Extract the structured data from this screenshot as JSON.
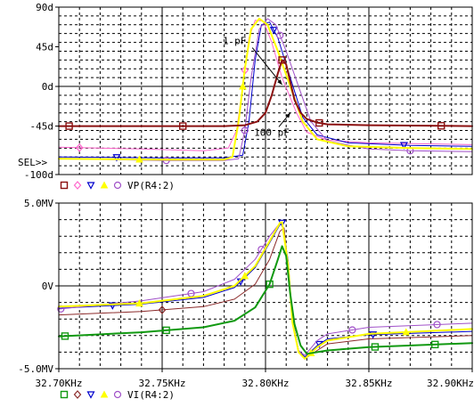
{
  "chart_data": [
    {
      "type": "line",
      "id": "phase",
      "y_ticks": [
        90,
        45,
        0,
        -45,
        -100
      ],
      "y_tick_labels": [
        "90d",
        "45d",
        "0d",
        "-45d",
        "-100d"
      ],
      "ylim": [
        -100,
        90
      ],
      "xlim": [
        32.7,
        32.9
      ],
      "sel_label": "SEL>>",
      "annotations": [
        {
          "text": "1 pF",
          "x": 32.785,
          "y": 48
        },
        {
          "text": "100 pF",
          "x": 32.803,
          "y": -56
        }
      ],
      "legend": {
        "markers": [
          "square",
          "diamond",
          "triangle-down",
          "triangle-up",
          "circle"
        ],
        "label": "VP(R4:2)"
      },
      "series": [
        {
          "marker": "square",
          "color": "#8b1010",
          "width": 2,
          "points": [
            [
              32.7,
              -45
            ],
            [
              32.75,
              -45
            ],
            [
              32.78,
              -45
            ],
            [
              32.79,
              -44
            ],
            [
              32.796,
              -40
            ],
            [
              32.8,
              -30
            ],
            [
              32.803,
              -10
            ],
            [
              32.806,
              15
            ],
            [
              32.808,
              30
            ],
            [
              32.81,
              25
            ],
            [
              32.812,
              5
            ],
            [
              32.814,
              -15
            ],
            [
              32.817,
              -30
            ],
            [
              32.82,
              -37
            ],
            [
              32.825,
              -41
            ],
            [
              32.83,
              -43
            ],
            [
              32.85,
              -44
            ],
            [
              32.9,
              -45
            ]
          ],
          "mark_x": [
            32.705,
            32.76,
            32.808,
            32.826,
            32.885
          ]
        },
        {
          "marker": "diamond",
          "color": "#ff66cc",
          "width": 1,
          "points": [
            [
              32.7,
              -69
            ],
            [
              32.74,
              -71
            ],
            [
              32.77,
              -73
            ],
            [
              32.782,
              -70
            ],
            [
              32.786,
              -50
            ],
            [
              32.789,
              0
            ],
            [
              32.792,
              55
            ],
            [
              32.795,
              75
            ],
            [
              32.799,
              74
            ],
            [
              32.803,
              50
            ],
            [
              32.808,
              10
            ],
            [
              32.815,
              -30
            ],
            [
              32.82,
              -52
            ],
            [
              32.83,
              -61
            ],
            [
              32.85,
              -64
            ],
            [
              32.9,
              -66
            ]
          ],
          "mark_x": [
            32.71,
            32.79
          ]
        },
        {
          "marker": "triangle-down",
          "color": "#0000cc",
          "width": 1,
          "points": [
            [
              32.7,
              -80
            ],
            [
              32.75,
              -81
            ],
            [
              32.78,
              -81
            ],
            [
              32.789,
              -78
            ],
            [
              32.792,
              -40
            ],
            [
              32.795,
              30
            ],
            [
              32.798,
              70
            ],
            [
              32.802,
              73
            ],
            [
              32.806,
              55
            ],
            [
              32.812,
              10
            ],
            [
              32.818,
              -35
            ],
            [
              32.825,
              -55
            ],
            [
              32.84,
              -64
            ],
            [
              32.87,
              -67
            ],
            [
              32.9,
              -68
            ]
          ],
          "mark_x": [
            32.728,
            32.804,
            32.867
          ]
        },
        {
          "marker": "triangle-up",
          "color": "#ffff00",
          "width": 2,
          "points": [
            [
              32.7,
              -82
            ],
            [
              32.75,
              -83
            ],
            [
              32.78,
              -83
            ],
            [
              32.784,
              -80
            ],
            [
              32.787,
              -40
            ],
            [
              32.79,
              20
            ],
            [
              32.793,
              65
            ],
            [
              32.797,
              77
            ],
            [
              32.801,
              70
            ],
            [
              32.806,
              40
            ],
            [
              32.812,
              0
            ],
            [
              32.818,
              -40
            ],
            [
              32.825,
              -60
            ],
            [
              32.84,
              -68
            ],
            [
              32.87,
              -70
            ],
            [
              32.9,
              -71
            ]
          ],
          "mark_x": [
            32.739,
            32.789
          ]
        },
        {
          "marker": "circle",
          "color": "#a050c8",
          "width": 1,
          "points": [
            [
              32.7,
              -82
            ],
            [
              32.75,
              -84
            ],
            [
              32.78,
              -84
            ],
            [
              32.787,
              -82
            ],
            [
              32.79,
              -50
            ],
            [
              32.793,
              10
            ],
            [
              32.797,
              65
            ],
            [
              32.801,
              77
            ],
            [
              32.805,
              70
            ],
            [
              32.81,
              40
            ],
            [
              32.816,
              0
            ],
            [
              32.822,
              -40
            ],
            [
              32.83,
              -62
            ],
            [
              32.85,
              -71
            ],
            [
              32.87,
              -73
            ],
            [
              32.9,
              -74
            ]
          ],
          "mark_x": [
            32.752,
            32.79,
            32.807,
            32.87
          ]
        }
      ]
    },
    {
      "type": "line",
      "id": "current",
      "y_ticks": [
        5,
        0,
        -5
      ],
      "y_tick_labels": [
        "5.0MV",
        "0V",
        "-5.0MV"
      ],
      "ylim": [
        -5,
        5
      ],
      "xlim": [
        32.7,
        32.9
      ],
      "x_ticks": [
        32.7,
        32.75,
        32.8,
        32.85,
        32.9
      ],
      "x_tick_labels": [
        "32.70KHz",
        "32.75KHz",
        "32.80KHz",
        "32.85KHz",
        "32.90KHz"
      ],
      "legend": {
        "markers": [
          "square",
          "diamond",
          "triangle-down",
          "triangle-up",
          "circle"
        ],
        "label": "VI(R4:2)"
      },
      "series": [
        {
          "marker": "square",
          "color": "#119911",
          "width": 2,
          "points": [
            [
              32.7,
              -3.05
            ],
            [
              32.74,
              -2.8
            ],
            [
              32.77,
              -2.5
            ],
            [
              32.785,
              -2.1
            ],
            [
              32.795,
              -1.3
            ],
            [
              32.802,
              0.1
            ],
            [
              32.806,
              1.6
            ],
            [
              32.808,
              2.4
            ],
            [
              32.81,
              1.8
            ],
            [
              32.812,
              -0.5
            ],
            [
              32.814,
              -2.3
            ],
            [
              32.817,
              -3.6
            ],
            [
              32.82,
              -4.1
            ],
            [
              32.825,
              -4.0
            ],
            [
              32.83,
              -3.9
            ],
            [
              32.85,
              -3.7
            ],
            [
              32.9,
              -3.45
            ]
          ],
          "mark_x": [
            32.703,
            32.752,
            32.802,
            32.853,
            32.882
          ]
        },
        {
          "marker": "diamond",
          "color": "#8b2a2a",
          "width": 1,
          "points": [
            [
              32.7,
              -1.75
            ],
            [
              32.74,
              -1.55
            ],
            [
              32.77,
              -1.25
            ],
            [
              32.785,
              -0.8
            ],
            [
              32.795,
              0.1
            ],
            [
              32.802,
              1.6
            ],
            [
              32.807,
              3.3
            ],
            [
              32.809,
              3.5
            ],
            [
              32.811,
              1.0
            ],
            [
              32.813,
              -2.0
            ],
            [
              32.816,
              -3.9
            ],
            [
              32.819,
              -4.4
            ],
            [
              32.825,
              -3.9
            ],
            [
              32.83,
              -3.5
            ],
            [
              32.85,
              -3.2
            ],
            [
              32.9,
              -3.0
            ]
          ],
          "mark_x": [
            32.75
          ]
        },
        {
          "marker": "triangle-down",
          "color": "#0000cc",
          "width": 1,
          "points": [
            [
              32.7,
              -1.35
            ],
            [
              32.74,
              -1.1
            ],
            [
              32.77,
              -0.7
            ],
            [
              32.785,
              -0.1
            ],
            [
              32.795,
              1.1
            ],
            [
              32.802,
              2.6
            ],
            [
              32.807,
              3.7
            ],
            [
              32.808,
              3.8
            ],
            [
              32.811,
              1.5
            ],
            [
              32.813,
              -2.0
            ],
            [
              32.816,
              -3.9
            ],
            [
              32.819,
              -4.3
            ],
            [
              32.825,
              -3.6
            ],
            [
              32.83,
              -3.2
            ],
            [
              32.85,
              -2.95
            ],
            [
              32.9,
              -2.75
            ]
          ],
          "mark_x": [
            32.726,
            32.788,
            32.808,
            32.826,
            32.852
          ]
        },
        {
          "marker": "triangle-up",
          "color": "#ffff00",
          "width": 2,
          "points": [
            [
              32.7,
              -1.25
            ],
            [
              32.74,
              -1.05
            ],
            [
              32.77,
              -0.6
            ],
            [
              32.785,
              0.0
            ],
            [
              32.795,
              1.2
            ],
            [
              32.802,
              2.7
            ],
            [
              32.807,
              3.8
            ],
            [
              32.808,
              3.85
            ],
            [
              32.811,
              1.2
            ],
            [
              32.813,
              -2.2
            ],
            [
              32.816,
              -4.0
            ],
            [
              32.819,
              -4.4
            ],
            [
              32.825,
              -3.7
            ],
            [
              32.83,
              -3.3
            ],
            [
              32.85,
              -2.9
            ],
            [
              32.9,
              -2.6
            ]
          ],
          "mark_x": [
            32.739,
            32.79,
            32.822,
            32.868
          ]
        },
        {
          "marker": "circle",
          "color": "#a050c8",
          "width": 1,
          "points": [
            [
              32.7,
              -1.4
            ],
            [
              32.74,
              -0.9
            ],
            [
              32.77,
              -0.35
            ],
            [
              32.785,
              0.4
            ],
            [
              32.795,
              1.6
            ],
            [
              32.802,
              3.0
            ],
            [
              32.807,
              3.8
            ],
            [
              32.808,
              3.85
            ],
            [
              32.811,
              1.3
            ],
            [
              32.813,
              -2.1
            ],
            [
              32.816,
              -3.9
            ],
            [
              32.819,
              -4.2
            ],
            [
              32.825,
              -3.3
            ],
            [
              32.83,
              -2.9
            ],
            [
              32.85,
              -2.5
            ],
            [
              32.9,
              -2.25
            ]
          ],
          "mark_x": [
            32.701,
            32.764,
            32.798,
            32.842,
            32.883
          ]
        }
      ]
    }
  ]
}
